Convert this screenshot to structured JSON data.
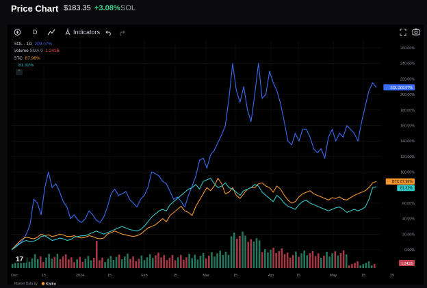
{
  "header": {
    "title": "Price Chart",
    "price": "$183.35",
    "change": "+3.08%",
    "ticker": "SOL"
  },
  "toolbar": {
    "interval": "D",
    "indicators_label": "Indicators"
  },
  "legend": {
    "series_title": "SOL · 1D",
    "series_value": "209.07%",
    "volume_label": "Volume",
    "volume_sma": "SMA 9",
    "volume_value": "1.241B",
    "btc_label": "BTC",
    "btc_value": "87.96%",
    "teal_value": "81.32%"
  },
  "footer": {
    "attribution_prefix": "Market Data by",
    "attribution_brand": "Kaiko",
    "tv_logo": "17"
  },
  "colors": {
    "background": "#000000",
    "sol": "#3b6cf6",
    "btc": "#f2962d",
    "teal": "#31c6c8",
    "volume_up": "#2a8a6b",
    "volume_down": "#c2404f",
    "positive": "#3dd68c"
  },
  "chart_data": {
    "type": "line",
    "y_unit": "%",
    "ylim": [
      -5,
      265
    ],
    "y_ticks": [
      "260.00%",
      "240.00%",
      "220.00%",
      "200.00%",
      "180.00%",
      "160.00%",
      "140.00%",
      "120.00%",
      "100.00%",
      "80.00%",
      "60.00%",
      "40.00%",
      "20.00%",
      "0.00%"
    ],
    "x_ticks": [
      "Dec",
      "15",
      "2024",
      "15",
      "Feb",
      "15",
      "Mar",
      "15",
      "Apr",
      "15",
      "May",
      "15",
      "29"
    ],
    "last_value_labels": [
      {
        "series": "SOL",
        "text": "SOL  209.07%"
      },
      {
        "series": "BTC",
        "text": "BTC  87.96%"
      },
      {
        "series": "teal",
        "text": "81.32%"
      }
    ],
    "volume_label": "1.241B",
    "series": [
      {
        "name": "SOL",
        "color": "#3b6cf6",
        "values": [
          0,
          4,
          8,
          12,
          20,
          32,
          65,
          60,
          45,
          80,
          100,
          80,
          85,
          75,
          62,
          55,
          40,
          45,
          38,
          35,
          40,
          50,
          45,
          38,
          35,
          42,
          55,
          72,
          78,
          70,
          72,
          75,
          65,
          60,
          55,
          65,
          70,
          80,
          100,
          98,
          95,
          88,
          85,
          75,
          65,
          68,
          62,
          55,
          70,
          82,
          95,
          115,
          118,
          105,
          122,
          128,
          138,
          148,
          160,
          195,
          240,
          205,
          190,
          210,
          180,
          165,
          200,
          240,
          195,
          200,
          230,
          215,
          205,
          188,
          165,
          140,
          135,
          150,
          140,
          155,
          155,
          145,
          130,
          125,
          130,
          118,
          145,
          155,
          140,
          150,
          145,
          160,
          155,
          150,
          140,
          165,
          185,
          205,
          215,
          209
        ]
      },
      {
        "name": "BTC",
        "color": "#f2962d",
        "values": [
          0,
          5,
          10,
          14,
          16,
          15,
          14,
          16,
          20,
          18,
          19,
          17,
          18,
          20,
          19,
          17,
          17,
          18,
          16,
          15,
          16,
          18,
          17,
          15,
          14,
          15,
          20,
          22,
          24,
          22,
          20,
          19,
          18,
          17,
          18,
          20,
          24,
          28,
          30,
          32,
          36,
          40,
          36,
          44,
          48,
          52,
          56,
          50,
          48,
          44,
          56,
          64,
          72,
          80,
          76,
          82,
          92,
          85,
          72,
          74,
          80,
          70,
          66,
          72,
          78,
          80,
          80,
          85,
          86,
          82,
          80,
          74,
          82,
          78,
          70,
          64,
          60,
          62,
          68,
          72,
          74,
          76,
          72,
          70,
          68,
          66,
          64,
          67,
          66,
          68,
          65,
          64,
          67,
          70,
          72,
          74,
          76,
          80,
          86,
          88
        ]
      },
      {
        "name": "teal",
        "color": "#31c6c8",
        "values": [
          0,
          3,
          7,
          10,
          12,
          10,
          11,
          13,
          17,
          18,
          15,
          12,
          13,
          15,
          14,
          12,
          13,
          16,
          17,
          18,
          18,
          20,
          22,
          24,
          22,
          20,
          22,
          24,
          26,
          28,
          30,
          28,
          26,
          25,
          24,
          26,
          30,
          36,
          42,
          46,
          50,
          52,
          50,
          58,
          62,
          66,
          70,
          74,
          78,
          80,
          84,
          78,
          88,
          90,
          92,
          85,
          80,
          82,
          86,
          80,
          78,
          74,
          70,
          76,
          78,
          80,
          84,
          82,
          74,
          70,
          66,
          62,
          70,
          66,
          60,
          56,
          54,
          52,
          58,
          62,
          64,
          60,
          58,
          56,
          54,
          52,
          50,
          52,
          54,
          55,
          52,
          48,
          50,
          52,
          50,
          52,
          55,
          65,
          80,
          81
        ]
      }
    ]
  }
}
